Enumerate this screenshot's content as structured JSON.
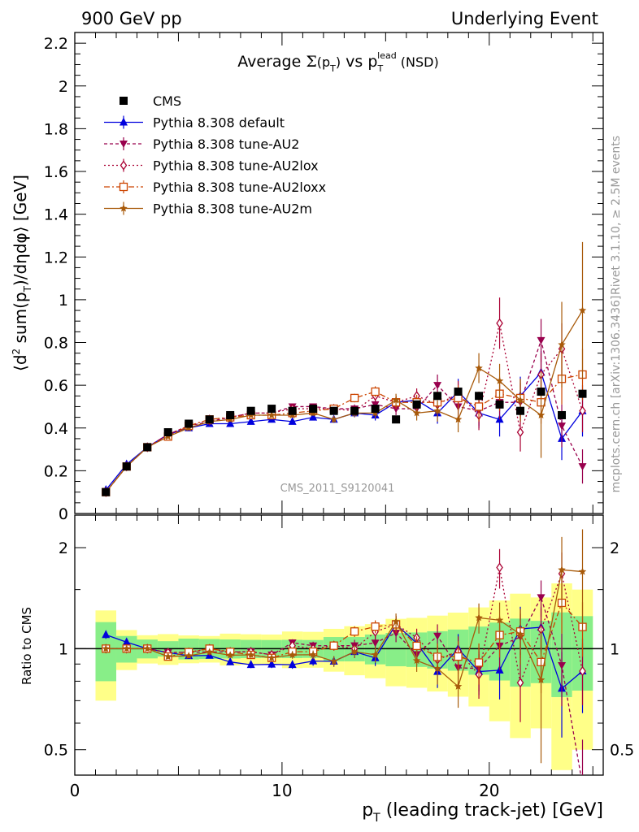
{
  "header": {
    "left": "900 GeV pp",
    "right": "Underlying Event"
  },
  "side_labels": {
    "rivet": "Rivet 3.1.10, ≥ 2.5M events",
    "mcplots": "mcplots.cern.ch [arXiv:1306.3436]"
  },
  "chart_data": {
    "type": "line",
    "title_text": "Average Σ(pT) vs pT lead (NSD)",
    "ylabel": "⟨d² sum(pT)/dηdφ⟩ [GeV]",
    "ratio_ylabel": "Ratio to CMS",
    "xlabel": "pT (leading track-jet) [GeV]",
    "analysis_tag": "CMS_2011_S9120041",
    "xlim": [
      0,
      25.5
    ],
    "ylim": [
      0,
      2.25
    ],
    "ratio_ylim": [
      0.42,
      2.5
    ],
    "x_ticks": [
      0,
      10,
      20
    ],
    "y_ticks": [
      0,
      0.2,
      0.4,
      0.6,
      0.8,
      1,
      1.2,
      1.4,
      1.6,
      1.8,
      2,
      2.2
    ],
    "ratio_ticks": [
      0.5,
      1,
      2
    ],
    "ratio_tick_labels": [
      "0.5",
      "1",
      "2"
    ],
    "x": [
      1.5,
      2.5,
      3.5,
      4.5,
      5.5,
      6.5,
      7.5,
      8.5,
      9.5,
      10.5,
      11.5,
      12.5,
      13.5,
      14.5,
      15.5,
      16.5,
      17.5,
      18.5,
      19.5,
      20.5,
      21.5,
      22.5,
      23.5,
      24.5
    ],
    "data": {
      "name": "CMS",
      "color": "#000000",
      "values": [
        0.1,
        0.22,
        0.31,
        0.38,
        0.42,
        0.44,
        0.46,
        0.48,
        0.49,
        0.48,
        0.49,
        0.48,
        0.48,
        0.49,
        0.44,
        0.51,
        0.55,
        0.57,
        0.55,
        0.51,
        0.48,
        0.57,
        0.46,
        0.56
      ],
      "band_inner": [
        0.02,
        0.02,
        0.02,
        0.02,
        0.03,
        0.03,
        0.03,
        0.03,
        0.03,
        0.03,
        0.03,
        0.04,
        0.04,
        0.05,
        0.05,
        0.06,
        0.07,
        0.08,
        0.09,
        0.1,
        0.11,
        0.12,
        0.13,
        0.14
      ],
      "band_outer": [
        0.03,
        0.03,
        0.03,
        0.04,
        0.04,
        0.04,
        0.05,
        0.05,
        0.05,
        0.06,
        0.06,
        0.07,
        0.08,
        0.09,
        0.1,
        0.12,
        0.14,
        0.16,
        0.18,
        0.2,
        0.22,
        0.24,
        0.26,
        0.28
      ]
    },
    "series": [
      {
        "name": "Pythia 8.308 default",
        "color": "#0000dd",
        "marker": "triangle-up",
        "dash": "",
        "values": [
          0.11,
          0.23,
          0.31,
          0.37,
          0.4,
          0.42,
          0.42,
          0.43,
          0.44,
          0.43,
          0.45,
          0.44,
          0.47,
          0.46,
          0.52,
          0.53,
          0.47,
          0.57,
          0.47,
          0.44,
          0.55,
          0.66,
          0.35,
          0.48
        ],
        "err": [
          0.003,
          0.004,
          0.005,
          0.006,
          0.007,
          0.008,
          0.009,
          0.01,
          0.011,
          0.012,
          0.014,
          0.016,
          0.02,
          0.025,
          0.03,
          0.035,
          0.05,
          0.06,
          0.07,
          0.08,
          0.09,
          0.1,
          0.1,
          0.12
        ]
      },
      {
        "name": "Pythia 8.308 tune-AU2",
        "color": "#99004d",
        "marker": "triangle-down",
        "dash": "4,3",
        "values": [
          0.1,
          0.22,
          0.31,
          0.37,
          0.41,
          0.43,
          0.45,
          0.47,
          0.47,
          0.5,
          0.5,
          0.49,
          0.49,
          0.51,
          0.49,
          0.49,
          0.6,
          0.5,
          0.48,
          0.52,
          0.52,
          0.81,
          0.41,
          0.22
        ],
        "err": [
          0.003,
          0.004,
          0.005,
          0.006,
          0.007,
          0.008,
          0.009,
          0.01,
          0.011,
          0.012,
          0.014,
          0.016,
          0.02,
          0.025,
          0.03,
          0.035,
          0.05,
          0.06,
          0.07,
          0.08,
          0.09,
          0.1,
          0.1,
          0.08
        ]
      },
      {
        "name": "Pythia 8.308 tune-AU2lox",
        "color": "#aa0033",
        "marker": "diamond-open",
        "dash": "2,3",
        "values": [
          0.1,
          0.22,
          0.31,
          0.37,
          0.41,
          0.44,
          0.45,
          0.47,
          0.47,
          0.49,
          0.49,
          0.49,
          0.48,
          0.55,
          0.52,
          0.55,
          0.51,
          0.56,
          0.46,
          0.89,
          0.38,
          0.65,
          0.77,
          0.48
        ],
        "err": [
          0.003,
          0.004,
          0.005,
          0.006,
          0.007,
          0.008,
          0.009,
          0.01,
          0.011,
          0.012,
          0.014,
          0.016,
          0.02,
          0.025,
          0.03,
          0.035,
          0.05,
          0.06,
          0.07,
          0.12,
          0.09,
          0.1,
          0.12,
          0.1
        ]
      },
      {
        "name": "Pythia 8.308 tune-AU2loxx",
        "color": "#cc4400",
        "marker": "square-open",
        "dash": "7,3,2,3",
        "values": [
          0.1,
          0.22,
          0.31,
          0.36,
          0.41,
          0.44,
          0.45,
          0.46,
          0.46,
          0.47,
          0.48,
          0.49,
          0.54,
          0.57,
          0.52,
          0.52,
          0.52,
          0.54,
          0.5,
          0.56,
          0.54,
          0.52,
          0.63,
          0.65
        ],
        "err": [
          0.003,
          0.004,
          0.005,
          0.006,
          0.007,
          0.008,
          0.009,
          0.01,
          0.011,
          0.012,
          0.014,
          0.016,
          0.02,
          0.025,
          0.03,
          0.035,
          0.05,
          0.06,
          0.07,
          0.08,
          0.09,
          0.1,
          0.12,
          0.12
        ]
      },
      {
        "name": "Pythia 8.308 tune-AU2m",
        "color": "#a85a0a",
        "marker": "star",
        "dash": "",
        "values": [
          0.1,
          0.22,
          0.31,
          0.36,
          0.4,
          0.43,
          0.44,
          0.46,
          0.46,
          0.46,
          0.47,
          0.44,
          0.47,
          0.47,
          0.53,
          0.47,
          0.48,
          0.44,
          0.68,
          0.62,
          0.53,
          0.46,
          0.79,
          0.95
        ],
        "err": [
          0.003,
          0.004,
          0.005,
          0.006,
          0.007,
          0.008,
          0.009,
          0.01,
          0.011,
          0.012,
          0.014,
          0.016,
          0.02,
          0.025,
          0.03,
          0.035,
          0.05,
          0.06,
          0.07,
          0.08,
          0.1,
          0.2,
          0.2,
          0.32
        ]
      }
    ]
  }
}
